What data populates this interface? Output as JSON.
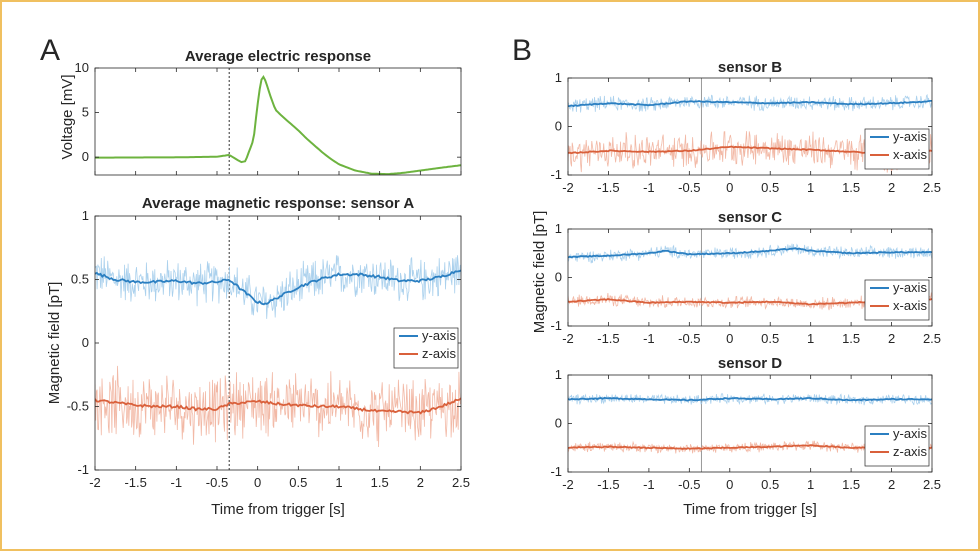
{
  "panel_labels": [
    "A",
    "B"
  ],
  "colors": {
    "electric": "#6db33f",
    "y_axis": "#2b7fc1",
    "x_axis": "#d9603b",
    "z_axis": "#d9603b",
    "y_light": "#9cc9ea",
    "x_light": "#f0ad96",
    "trigger": "#333333"
  },
  "chart_data": [
    {
      "type": "line",
      "title": "Average electric response",
      "ylabel": "Voltage [mV]",
      "xlabel": "",
      "xlim": [
        -2,
        2.5
      ],
      "ylim": [
        -2,
        10
      ],
      "yticks": [
        0,
        5,
        10
      ],
      "trigger_x": -0.35,
      "series": [
        {
          "values_xy": [
            [
              -2,
              -0.05
            ],
            [
              -1.0,
              -0.02
            ],
            [
              -0.5,
              0.05
            ],
            [
              -0.35,
              0.25
            ],
            [
              -0.25,
              -0.3
            ],
            [
              -0.2,
              -0.55
            ],
            [
              -0.15,
              -0.45
            ],
            [
              -0.05,
              2.0
            ],
            [
              0.0,
              6.0
            ],
            [
              0.04,
              8.6
            ],
            [
              0.07,
              9.0
            ],
            [
              0.1,
              8.5
            ],
            [
              0.15,
              7.0
            ],
            [
              0.22,
              5.3
            ],
            [
              0.3,
              4.6
            ],
            [
              0.4,
              3.8
            ],
            [
              0.5,
              3.0
            ],
            [
              0.6,
              2.1
            ],
            [
              0.7,
              1.3
            ],
            [
              0.8,
              0.5
            ],
            [
              0.9,
              -0.2
            ],
            [
              1.0,
              -0.8
            ],
            [
              1.2,
              -1.5
            ],
            [
              1.4,
              -1.85
            ],
            [
              1.6,
              -1.9
            ],
            [
              1.8,
              -1.75
            ],
            [
              2.0,
              -1.5
            ],
            [
              2.2,
              -1.25
            ],
            [
              2.5,
              -0.9
            ]
          ]
        }
      ]
    },
    {
      "type": "line",
      "title": "Average magnetic response: sensor A",
      "ylabel": "Magnetic field [pT]",
      "xlabel": "Time from trigger [s]",
      "xlim": [
        -2,
        2.5
      ],
      "ylim": [
        -1,
        1
      ],
      "xticks": [
        -2,
        -1.5,
        -1,
        -0.5,
        0,
        0.5,
        1,
        1.5,
        2,
        2.5
      ],
      "yticks": [
        -1,
        -0.5,
        0,
        0.5,
        1
      ],
      "trigger_x": -0.35,
      "legend": "right",
      "series": [
        {
          "name": "y-axis",
          "values_xy": [
            [
              -2,
              0.55
            ],
            [
              -1.75,
              0.5
            ],
            [
              -1.5,
              0.48
            ],
            [
              -1.25,
              0.48
            ],
            [
              -1.0,
              0.49
            ],
            [
              -0.75,
              0.47
            ],
            [
              -0.5,
              0.48
            ],
            [
              -0.35,
              0.5
            ],
            [
              -0.2,
              0.42
            ],
            [
              0.0,
              0.32
            ],
            [
              0.1,
              0.31
            ],
            [
              0.25,
              0.36
            ],
            [
              0.5,
              0.44
            ],
            [
              0.75,
              0.5
            ],
            [
              1.0,
              0.54
            ],
            [
              1.25,
              0.54
            ],
            [
              1.5,
              0.52
            ],
            [
              1.75,
              0.49
            ],
            [
              2.0,
              0.49
            ],
            [
              2.25,
              0.52
            ],
            [
              2.5,
              0.58
            ]
          ],
          "noise": 0.2
        },
        {
          "name": "z-axis",
          "values_xy": [
            [
              -2,
              -0.45
            ],
            [
              -1.75,
              -0.47
            ],
            [
              -1.5,
              -0.49
            ],
            [
              -1.25,
              -0.5
            ],
            [
              -1.0,
              -0.5
            ],
            [
              -0.75,
              -0.52
            ],
            [
              -0.5,
              -0.52
            ],
            [
              -0.35,
              -0.48
            ],
            [
              -0.2,
              -0.47
            ],
            [
              0.0,
              -0.46
            ],
            [
              0.25,
              -0.48
            ],
            [
              0.5,
              -0.49
            ],
            [
              0.75,
              -0.5
            ],
            [
              1.0,
              -0.5
            ],
            [
              1.25,
              -0.52
            ],
            [
              1.5,
              -0.54
            ],
            [
              1.75,
              -0.54
            ],
            [
              2.0,
              -0.55
            ],
            [
              2.25,
              -0.5
            ],
            [
              2.5,
              -0.44
            ]
          ],
          "noise": 0.3
        }
      ]
    },
    {
      "type": "line",
      "title": "sensor B",
      "ylabel": "Magnetic field [pT]",
      "xlabel": "",
      "xlim": [
        -2,
        2.5
      ],
      "ylim": [
        -1,
        1
      ],
      "xticks": [
        -2,
        -1.5,
        -1,
        -0.5,
        0,
        0.5,
        1,
        1.5,
        2,
        2.5
      ],
      "yticks": [
        -1,
        0,
        1
      ],
      "trigger_x": -0.35,
      "legend": "right",
      "series": [
        {
          "name": "y-axis",
          "values_xy": [
            [
              -2,
              0.42
            ],
            [
              -1.5,
              0.48
            ],
            [
              -1.0,
              0.44
            ],
            [
              -0.5,
              0.52
            ],
            [
              0.0,
              0.5
            ],
            [
              0.5,
              0.48
            ],
            [
              1.0,
              0.5
            ],
            [
              1.5,
              0.46
            ],
            [
              2.0,
              0.48
            ],
            [
              2.5,
              0.52
            ]
          ],
          "noise": 0.18
        },
        {
          "name": "x-axis",
          "values_xy": [
            [
              -2,
              -0.55
            ],
            [
              -1.5,
              -0.5
            ],
            [
              -1.0,
              -0.52
            ],
            [
              -0.5,
              -0.5
            ],
            [
              0.0,
              -0.42
            ],
            [
              0.5,
              -0.45
            ],
            [
              1.0,
              -0.48
            ],
            [
              1.5,
              -0.52
            ],
            [
              2.0,
              -0.58
            ],
            [
              2.5,
              -0.5
            ]
          ],
          "noise": 0.42
        }
      ]
    },
    {
      "type": "line",
      "title": "sensor C",
      "ylabel": "Magnetic field [pT]",
      "xlabel": "",
      "xlim": [
        -2,
        2.5
      ],
      "ylim": [
        -1,
        1
      ],
      "xticks": [
        -2,
        -1.5,
        -1,
        -0.5,
        0,
        0.5,
        1,
        1.5,
        2,
        2.5
      ],
      "yticks": [
        -1,
        0,
        1
      ],
      "trigger_x": -0.35,
      "legend": "right",
      "series": [
        {
          "name": "y-axis",
          "values_xy": [
            [
              -2,
              0.42
            ],
            [
              -1.5,
              0.45
            ],
            [
              -1.0,
              0.5
            ],
            [
              -0.8,
              0.55
            ],
            [
              -0.5,
              0.48
            ],
            [
              0.0,
              0.5
            ],
            [
              0.5,
              0.55
            ],
            [
              0.8,
              0.6
            ],
            [
              1.0,
              0.55
            ],
            [
              1.5,
              0.5
            ],
            [
              2.0,
              0.52
            ],
            [
              2.5,
              0.52
            ]
          ],
          "noise": 0.15
        },
        {
          "name": "x-axis",
          "values_xy": [
            [
              -2,
              -0.5
            ],
            [
              -1.5,
              -0.45
            ],
            [
              -1.0,
              -0.52
            ],
            [
              -0.5,
              -0.5
            ],
            [
              0.0,
              -0.52
            ],
            [
              0.5,
              -0.5
            ],
            [
              1.0,
              -0.55
            ],
            [
              1.5,
              -0.52
            ],
            [
              2.0,
              -0.48
            ],
            [
              2.5,
              -0.45
            ]
          ],
          "noise": 0.15
        }
      ]
    },
    {
      "type": "line",
      "title": "sensor D",
      "ylabel": "Magnetic field [pT]",
      "xlabel": "Time from trigger [s]",
      "xlim": [
        -2,
        2.5
      ],
      "ylim": [
        -1,
        1
      ],
      "xticks": [
        -2,
        -1.5,
        -1,
        -0.5,
        0,
        0.5,
        1,
        1.5,
        2,
        2.5
      ],
      "yticks": [
        -1,
        0,
        1
      ],
      "trigger_x": -0.35,
      "legend": "right",
      "series": [
        {
          "name": "y-axis",
          "values_xy": [
            [
              -2,
              0.5
            ],
            [
              -1.5,
              0.52
            ],
            [
              -1.0,
              0.5
            ],
            [
              -0.5,
              0.48
            ],
            [
              0.0,
              0.52
            ],
            [
              0.5,
              0.5
            ],
            [
              1.0,
              0.52
            ],
            [
              1.5,
              0.48
            ],
            [
              2.0,
              0.5
            ],
            [
              2.5,
              0.5
            ]
          ],
          "noise": 0.12
        },
        {
          "name": "z-axis",
          "values_xy": [
            [
              -2,
              -0.5
            ],
            [
              -1.5,
              -0.48
            ],
            [
              -1.0,
              -0.5
            ],
            [
              -0.5,
              -0.52
            ],
            [
              0.0,
              -0.5
            ],
            [
              0.5,
              -0.48
            ],
            [
              1.0,
              -0.45
            ],
            [
              1.5,
              -0.5
            ],
            [
              2.0,
              -0.48
            ],
            [
              2.5,
              -0.5
            ]
          ],
          "noise": 0.12
        }
      ]
    }
  ]
}
